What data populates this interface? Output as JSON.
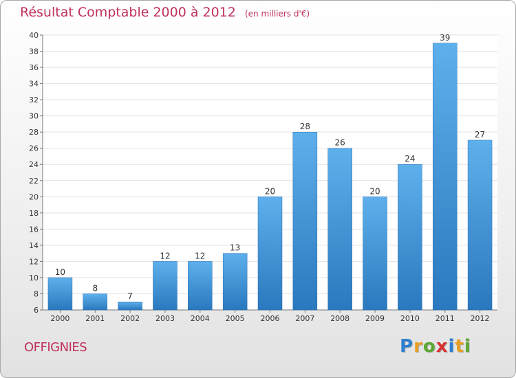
{
  "title": "Résultat Comptable 2000 à 2012",
  "unit_note": "(en milliers d'€)",
  "commune": "OFFIGNIES",
  "logo": {
    "letters": [
      {
        "ch": "P",
        "color": "#2f7fd0"
      },
      {
        "ch": "r",
        "color": "#e8a020"
      },
      {
        "ch": "o",
        "color": "#5aa830"
      },
      {
        "ch": "x",
        "color": "#d83030"
      },
      {
        "ch": "i",
        "color": "#2f7fd0"
      },
      {
        "ch": "t",
        "color": "#e8a020"
      },
      {
        "ch": "i",
        "color": "#5aa830"
      }
    ]
  },
  "chart_data": {
    "type": "bar",
    "title": "Résultat Comptable 2000 à 2012",
    "xlabel": "",
    "ylabel": "",
    "categories": [
      "2000",
      "2001",
      "2002",
      "2003",
      "2004",
      "2005",
      "2006",
      "2007",
      "2008",
      "2009",
      "2010",
      "2011",
      "2012"
    ],
    "values": [
      10,
      8,
      7,
      12,
      12,
      13,
      20,
      28,
      26,
      20,
      24,
      39,
      27
    ],
    "ylim": [
      6,
      40
    ],
    "yticks": [
      6,
      8,
      10,
      12,
      14,
      16,
      18,
      20,
      22,
      24,
      26,
      28,
      30,
      32,
      34,
      36,
      38,
      40
    ],
    "grid": true,
    "bar_color": "#3b94d9"
  }
}
